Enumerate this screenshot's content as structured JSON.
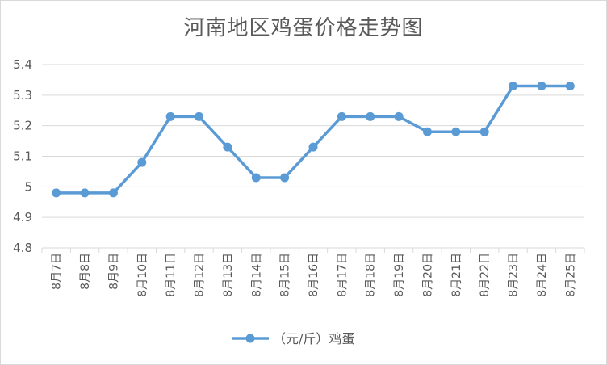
{
  "chart_data": {
    "type": "line",
    "title": "河南地区鸡蛋价格走势图",
    "categories": [
      "8月7日",
      "8月8日",
      "8月9日",
      "8月10日",
      "8月11日",
      "8月12日",
      "8月13日",
      "8月14日",
      "8月15日",
      "8月16日",
      "8月17日",
      "8月18日",
      "8月19日",
      "8月20日",
      "8月21日",
      "8月22日",
      "8月23日",
      "8月24日",
      "8月25日"
    ],
    "series": [
      {
        "name": "（元/斤）鸡蛋",
        "values": [
          4.98,
          4.98,
          4.98,
          5.08,
          5.23,
          5.23,
          5.13,
          5.03,
          5.03,
          5.13,
          5.23,
          5.23,
          5.23,
          5.18,
          5.18,
          5.18,
          5.33,
          5.33,
          5.33
        ]
      }
    ],
    "yticks": [
      "4.8",
      "4.9",
      "5",
      "5.1",
      "5.2",
      "5.3",
      "5.4"
    ],
    "ylim": [
      4.8,
      5.4
    ],
    "grid": true,
    "legend_position": "bottom",
    "colors": {
      "line": "#5b9bd5",
      "grid": "#d9d9d9",
      "text": "#595959"
    }
  }
}
